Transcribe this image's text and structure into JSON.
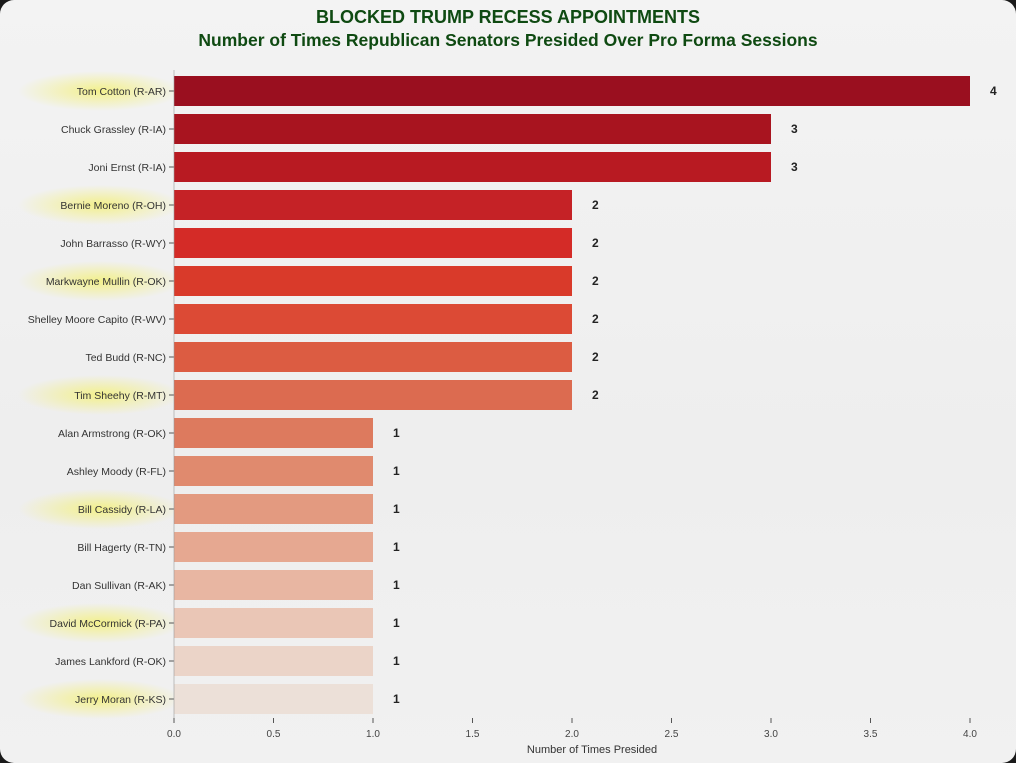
{
  "chart_data": {
    "type": "bar",
    "orientation": "horizontal",
    "title": "BLOCKED TRUMP RECESS APPOINTMENTS",
    "subtitle": "Number of Times Republican Senators Presided Over Pro Forma Sessions",
    "xlabel": "Number of Times Presided",
    "ylabel": "",
    "xlim": [
      0,
      4
    ],
    "xticks": [
      "0.0",
      "0.5",
      "1.0",
      "1.5",
      "2.0",
      "2.5",
      "3.0",
      "3.5",
      "4.0"
    ],
    "grid": false,
    "categories": [
      "Tom Cotton (R-AR)",
      "Chuck Grassley (R-IA)",
      "Joni Ernst (R-IA)",
      "Bernie Moreno (R-OH)",
      "John Barrasso (R-WY)",
      "Markwayne Mullin (R-OK)",
      "Shelley Moore Capito (R-WV)",
      "Ted Budd (R-NC)",
      "Tim Sheehy (R-MT)",
      "Alan Armstrong (R-OK)",
      "Ashley Moody (R-FL)",
      "Bill Cassidy (R-LA)",
      "Bill Hagerty (R-TN)",
      "Dan Sullivan (R-AK)",
      "David McCormick (R-PA)",
      "James Lankford (R-OK)",
      "Jerry Moran (R-KS)"
    ],
    "values": [
      4,
      3,
      3,
      2,
      2,
      2,
      2,
      2,
      2,
      1,
      1,
      1,
      1,
      1,
      1,
      1,
      1
    ],
    "colors": [
      "#9a0f1f",
      "#a8141f",
      "#b81a22",
      "#c52226",
      "#d42b27",
      "#d93a2a",
      "#dc4a35",
      "#dc5c42",
      "#dc6b50",
      "#dd7a5e",
      "#e08a6e",
      "#e39a80",
      "#e6a891",
      "#e8b6a2",
      "#eac6b6",
      "#ebd4c8",
      "#ece0d8"
    ]
  }
}
